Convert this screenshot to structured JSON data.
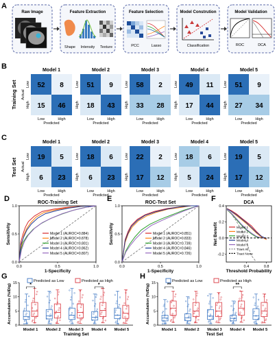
{
  "panel_a": {
    "letter": "A",
    "boxes": [
      {
        "title": "Raw Image",
        "labels": []
      },
      {
        "title": "Feature Extraction",
        "labels": [
          "Shape",
          "Intensity",
          "Texture"
        ]
      },
      {
        "title": "Feature Selection",
        "labels": [
          "PCC",
          "Lasso"
        ]
      },
      {
        "title": "Model Constrution",
        "labels": [
          "Classification"
        ]
      },
      {
        "title": "Model Validation",
        "labels": [
          "ROC",
          "DCA"
        ]
      }
    ]
  },
  "panel_b": {
    "letter": "B",
    "row_label": "Training Set"
  },
  "panel_c": {
    "letter": "C",
    "row_label": "Test Set"
  },
  "confusion": {
    "models": [
      "Model 1",
      "Model 2",
      "Model 3",
      "Model 4",
      "Model 5"
    ],
    "actual_label": "Actual",
    "predicted_label": "Predicted",
    "class_labels": [
      "Low",
      "High"
    ],
    "colors": {
      "dark": "#2b6eb6",
      "mid": "#a7cce6",
      "light": "#dbe9f5",
      "lighter": "#e9f1f9"
    }
  },
  "chart_data": [
    {
      "type": "heatmap",
      "title": "Training Set",
      "models": [
        "Model 1",
        "Model 2",
        "Model 3",
        "Model 4",
        "Model 5"
      ],
      "row_labels": [
        "Low",
        "High"
      ],
      "col_labels": [
        "Low",
        "High"
      ],
      "ylabel": "Actual",
      "xlabel": "Predicted",
      "matrices": [
        [
          [
            52,
            8
          ],
          [
            15,
            46
          ]
        ],
        [
          [
            51,
            9
          ],
          [
            18,
            43
          ]
        ],
        [
          [
            58,
            2
          ],
          [
            33,
            28
          ]
        ],
        [
          [
            49,
            11
          ],
          [
            17,
            44
          ]
        ],
        [
          [
            51,
            9
          ],
          [
            27,
            34
          ]
        ]
      ]
    },
    {
      "type": "heatmap",
      "title": "Test Set",
      "models": [
        "Model 1",
        "Model 2",
        "Model 3",
        "Model 4",
        "Model 5"
      ],
      "row_labels": [
        "Low",
        "High"
      ],
      "col_labels": [
        "Low",
        "High"
      ],
      "ylabel": "Actual",
      "xlabel": "Predicted",
      "matrices": [
        [
          [
            19,
            5
          ],
          [
            6,
            23
          ]
        ],
        [
          [
            18,
            6
          ],
          [
            6,
            23
          ]
        ],
        [
          [
            22,
            2
          ],
          [
            17,
            12
          ]
        ],
        [
          [
            18,
            6
          ],
          [
            5,
            24
          ]
        ],
        [
          [
            19,
            5
          ],
          [
            17,
            12
          ]
        ]
      ]
    },
    {
      "type": "line",
      "letter": "D",
      "title": "ROC-Training Set",
      "xlabel": "1-Specificity",
      "ylabel": "Sensitivity",
      "xlim": [
        0,
        1
      ],
      "ylim": [
        0,
        1
      ],
      "ticks": [
        "0.0",
        "0.5",
        "1.0"
      ],
      "series": [
        {
          "name": "Model 1 (AUROC=0.884)",
          "color": "#d62728",
          "x": [
            0,
            0.02,
            0.05,
            0.08,
            0.12,
            0.2,
            0.3,
            0.45,
            0.6,
            0.8,
            1
          ],
          "y": [
            0,
            0.35,
            0.5,
            0.62,
            0.72,
            0.82,
            0.9,
            0.94,
            0.97,
            0.99,
            1
          ]
        },
        {
          "name": "Model 2 (AUROC=0.878)",
          "color": "#ff7f0e",
          "x": [
            0,
            0.03,
            0.06,
            0.1,
            0.15,
            0.22,
            0.32,
            0.48,
            0.62,
            0.8,
            1
          ],
          "y": [
            0,
            0.3,
            0.48,
            0.6,
            0.7,
            0.8,
            0.88,
            0.93,
            0.96,
            0.99,
            1
          ]
        },
        {
          "name": "Model 3 (AUROC=0.801)",
          "color": "#2ca02c",
          "x": [
            0,
            0.02,
            0.05,
            0.1,
            0.18,
            0.28,
            0.4,
            0.55,
            0.7,
            0.85,
            1
          ],
          "y": [
            0,
            0.2,
            0.35,
            0.46,
            0.58,
            0.68,
            0.77,
            0.85,
            0.92,
            0.97,
            1
          ]
        },
        {
          "name": "Model 4 (AUROC=0.862)",
          "color": "#1f3a93",
          "x": [
            0,
            0.02,
            0.06,
            0.1,
            0.16,
            0.24,
            0.34,
            0.5,
            0.65,
            0.82,
            1
          ],
          "y": [
            0,
            0.3,
            0.45,
            0.57,
            0.68,
            0.78,
            0.86,
            0.92,
            0.96,
            0.99,
            1
          ]
        },
        {
          "name": "Model 5 (AUROC=0.807)",
          "color": "#9467bd",
          "x": [
            0,
            0.03,
            0.07,
            0.12,
            0.2,
            0.3,
            0.42,
            0.56,
            0.7,
            0.86,
            1
          ],
          "y": [
            0,
            0.22,
            0.37,
            0.48,
            0.6,
            0.7,
            0.78,
            0.86,
            0.92,
            0.97,
            1
          ]
        },
        {
          "name": "",
          "color": "#888888",
          "dashed": true,
          "x": [
            0,
            1
          ],
          "y": [
            0,
            1
          ]
        }
      ]
    },
    {
      "type": "line",
      "letter": "E",
      "title": "ROC-Test Set",
      "xlabel": "1-Specificity",
      "ylabel": "Sensitivity",
      "xlim": [
        0,
        1
      ],
      "ylim": [
        0,
        1
      ],
      "ticks": [
        "0.0",
        "0.5",
        "1.0"
      ],
      "series": [
        {
          "name": "Model 1 (AUROC=0.851)",
          "color": "#d62728",
          "x": [
            0,
            0.04,
            0.08,
            0.12,
            0.2,
            0.3,
            0.42,
            0.58,
            0.75,
            0.9,
            1
          ],
          "y": [
            0,
            0.4,
            0.55,
            0.65,
            0.76,
            0.84,
            0.9,
            0.95,
            0.98,
            1,
            1
          ]
        },
        {
          "name": "Model 2 (AUROC=0.833)",
          "color": "#ff7f0e",
          "x": [
            0,
            0.04,
            0.08,
            0.13,
            0.21,
            0.32,
            0.44,
            0.6,
            0.76,
            0.9,
            1
          ],
          "y": [
            0,
            0.35,
            0.5,
            0.62,
            0.73,
            0.82,
            0.88,
            0.94,
            0.97,
            1,
            1
          ]
        },
        {
          "name": "Model 3 (AUROC=0.739)",
          "color": "#2ca02c",
          "x": [
            0,
            0.05,
            0.1,
            0.17,
            0.25,
            0.36,
            0.5,
            0.65,
            0.8,
            0.92,
            1
          ],
          "y": [
            0,
            0.2,
            0.32,
            0.45,
            0.57,
            0.67,
            0.76,
            0.84,
            0.92,
            0.97,
            1
          ]
        },
        {
          "name": "Model 4 (AUROC=0.846)",
          "color": "#1f3a93",
          "x": [
            0,
            0.04,
            0.08,
            0.12,
            0.2,
            0.3,
            0.43,
            0.58,
            0.75,
            0.9,
            1
          ],
          "y": [
            0,
            0.38,
            0.52,
            0.63,
            0.74,
            0.83,
            0.89,
            0.94,
            0.98,
            1,
            1
          ]
        },
        {
          "name": "Model 5 (AUROC=0.726)",
          "color": "#9467bd",
          "x": [
            0,
            0.05,
            0.11,
            0.18,
            0.27,
            0.38,
            0.52,
            0.67,
            0.81,
            0.93,
            1
          ],
          "y": [
            0,
            0.18,
            0.3,
            0.42,
            0.54,
            0.65,
            0.74,
            0.83,
            0.91,
            0.97,
            1
          ]
        },
        {
          "name": "",
          "color": "#888888",
          "dashed": true,
          "x": [
            0,
            1
          ],
          "y": [
            0,
            1
          ]
        }
      ]
    },
    {
      "type": "line",
      "letter": "F",
      "title": "DCA",
      "xlabel": "Threshold Probability",
      "ylabel": "Net Benefit",
      "xlim": [
        0,
        0.9
      ],
      "ylim": [
        -0.3,
        0.4
      ],
      "xticks": [
        "0.4",
        "0.8"
      ],
      "yticks": [
        "-0.2",
        "0.0",
        "0.2",
        "0.4"
      ],
      "series": [
        {
          "name": "Model 1",
          "color": "#d62728",
          "x": [
            0,
            0.1,
            0.2,
            0.3,
            0.4,
            0.5,
            0.6,
            0.7,
            0.8
          ],
          "y": [
            0.37,
            0.34,
            0.3,
            0.25,
            0.2,
            0.15,
            0.08,
            0.02,
            -0.02
          ]
        },
        {
          "name": "Model 2",
          "color": "#ff7f0e",
          "x": [
            0,
            0.1,
            0.2,
            0.3,
            0.4,
            0.5,
            0.6,
            0.7,
            0.8
          ],
          "y": [
            0.37,
            0.33,
            0.28,
            0.23,
            0.18,
            0.12,
            0.06,
            0.01,
            -0.02
          ]
        },
        {
          "name": "Model 3",
          "color": "#2ca02c",
          "x": [
            0,
            0.1,
            0.2,
            0.3,
            0.4,
            0.5,
            0.6,
            0.7,
            0.8
          ],
          "y": [
            0.36,
            0.3,
            0.23,
            0.16,
            0.1,
            0.05,
            0.01,
            0,
            0
          ]
        },
        {
          "name": "Model 4",
          "color": "#1f3a93",
          "x": [
            0,
            0.1,
            0.2,
            0.3,
            0.4,
            0.5,
            0.6,
            0.7,
            0.8
          ],
          "y": [
            0.37,
            0.33,
            0.29,
            0.24,
            0.19,
            0.13,
            0.07,
            0.02,
            -0.01
          ]
        },
        {
          "name": "Model 5",
          "color": "#9467bd",
          "x": [
            0,
            0.1,
            0.2,
            0.3,
            0.4,
            0.5,
            0.6,
            0.7,
            0.8
          ],
          "y": [
            0.36,
            0.31,
            0.24,
            0.17,
            0.11,
            0.06,
            0.02,
            0,
            0
          ]
        },
        {
          "name": "Traet All",
          "color": "#888888",
          "dashed": true,
          "x": [
            0,
            0.1,
            0.2,
            0.3,
            0.4,
            0.5,
            0.6
          ],
          "y": [
            0.37,
            0.3,
            0.21,
            0.1,
            -0.05,
            -0.22,
            -0.3
          ]
        },
        {
          "name": "Traet None",
          "color": "#000000",
          "dashed": true,
          "x": [
            0,
            0.9
          ],
          "y": [
            0,
            0
          ]
        }
      ]
    },
    {
      "type": "box",
      "letter": "G",
      "xlabel": "Training Set",
      "ylabel": "Accumulation (%ID/g)",
      "ylim": [
        0,
        15
      ],
      "yticks": [
        "0",
        "5",
        "10",
        "15"
      ],
      "categories": [
        "Model 1",
        "Model 2",
        "Model 3",
        "Model 4",
        "Model 5"
      ],
      "legend": [
        "Predicted as Low",
        "Predicted as High"
      ],
      "significance": [
        {
          "category": "Model 1",
          "mark": "*"
        },
        {
          "category": "Model 4",
          "mark": "*"
        }
      ],
      "series": [
        {
          "name": "Predicted as Low",
          "color": "#3b75c2",
          "boxes": [
            [
              0.5,
              2,
              3,
              5,
              11
            ],
            [
              0.5,
              2.2,
              3.3,
              5.5,
              12
            ],
            [
              0.5,
              2,
              3.5,
              6,
              13
            ],
            [
              0.5,
              1.8,
              2.8,
              4.8,
              11
            ],
            [
              0.5,
              2.3,
              3.5,
              6,
              12
            ]
          ]
        },
        {
          "name": "Predicted as High",
          "color": "#d9363e",
          "boxes": [
            [
              0.8,
              3,
              5,
              8,
              13
            ],
            [
              0.6,
              2.5,
              4.5,
              7.5,
              12.5
            ],
            [
              0.6,
              2.5,
              4.5,
              7.5,
              12.5
            ],
            [
              0.8,
              3,
              5.2,
              8,
              13
            ],
            [
              0.6,
              2.4,
              4.2,
              7,
              12.5
            ]
          ]
        }
      ]
    },
    {
      "type": "box",
      "letter": "H",
      "xlabel": "Test Set",
      "ylabel": "Accumulation (%ID/g)",
      "ylim": [
        0,
        15
      ],
      "yticks": [
        "0",
        "5",
        "10",
        "15"
      ],
      "categories": [
        "Model 1",
        "Model 2",
        "Model 3",
        "Model 4",
        "Model 5"
      ],
      "legend": [
        "Predicted as Low",
        "Predicted as High"
      ],
      "significance": [
        {
          "category": "Model 1",
          "mark": "**"
        },
        {
          "category": "Model 4",
          "mark": "**"
        }
      ],
      "series": [
        {
          "name": "Predicted as Low",
          "color": "#3b75c2",
          "boxes": [
            [
              0.5,
              1.5,
              2.5,
              3.5,
              9
            ],
            [
              0.5,
              1.6,
              2.6,
              4,
              10
            ],
            [
              0.5,
              2,
              3.2,
              5.5,
              11
            ],
            [
              0.5,
              1.5,
              2.4,
              3.5,
              8.5
            ],
            [
              0.5,
              2,
              3.3,
              5.8,
              11
            ]
          ]
        },
        {
          "name": "Predicted as High",
          "color": "#d9363e",
          "boxes": [
            [
              1,
              3.5,
              6,
              8.5,
              12
            ],
            [
              0.8,
              3,
              5,
              8,
              12
            ],
            [
              0.8,
              3,
              5,
              8,
              11.5
            ],
            [
              1,
              3.5,
              6,
              8.5,
              12
            ],
            [
              0.8,
              3,
              5,
              8,
              11
            ]
          ]
        }
      ]
    }
  ]
}
